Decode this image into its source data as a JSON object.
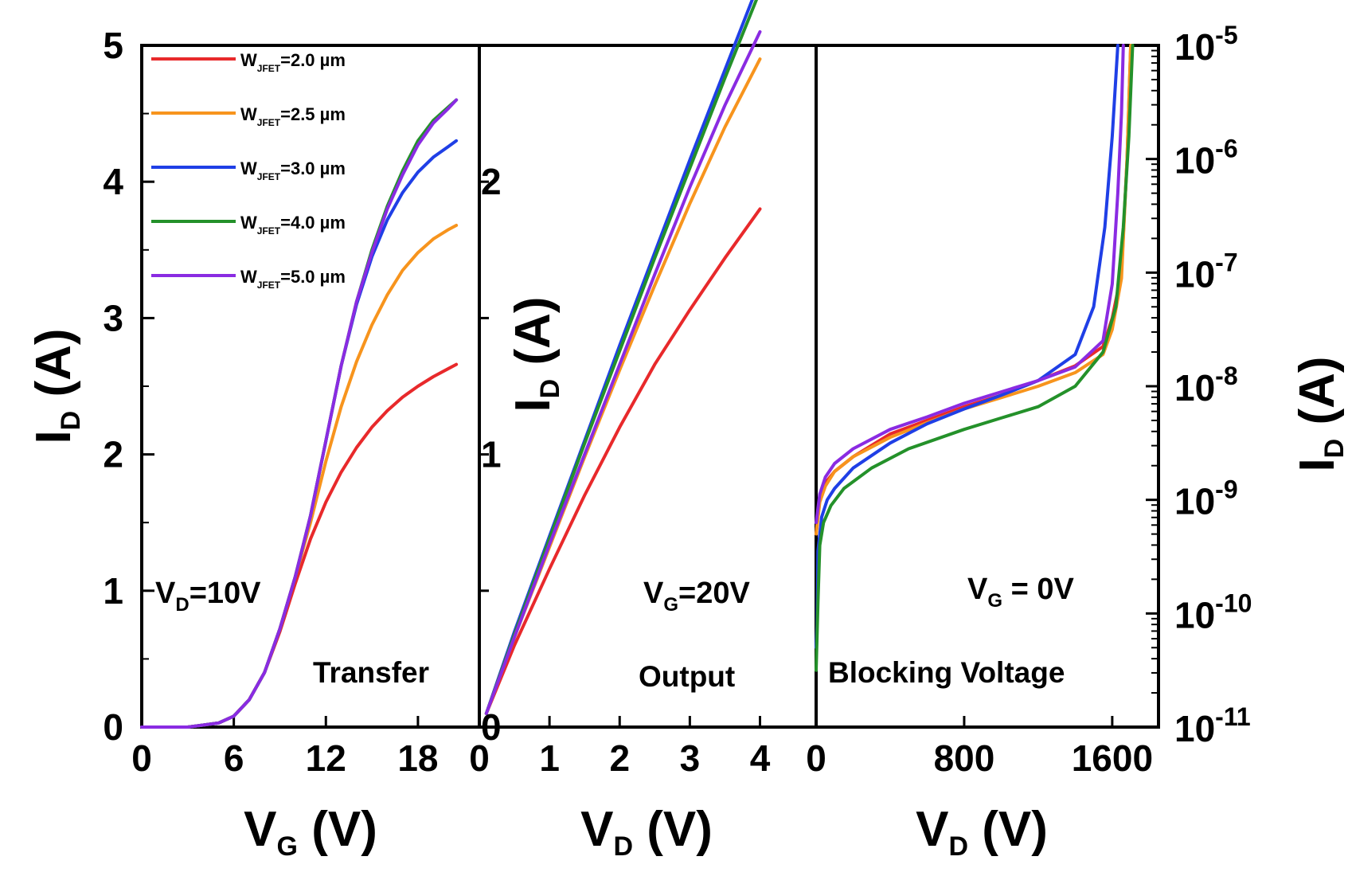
{
  "chart_data": {
    "type": "line",
    "series_names": [
      "W_JFET=2.0 µm",
      "W_JFET=2.5 µm",
      "W_JFET=3.0 µm",
      "W_JFET=4.0 µm",
      "W_JFET=5.0 µm"
    ],
    "legend": [
      {
        "main": "W",
        "sub": "JFET",
        "rest": "=2.0 µm",
        "color": "#e8292b"
      },
      {
        "main": "W",
        "sub": "JFET",
        "rest": "=2.5 µm",
        "color": "#f7941d"
      },
      {
        "main": "W",
        "sub": "JFET",
        "rest": "=3.0 µm",
        "color": "#1f3fe6"
      },
      {
        "main": "W",
        "sub": "JFET",
        "rest": "=4.0 µm",
        "color": "#24912a"
      },
      {
        "main": "W",
        "sub": "JFET",
        "rest": "=5.0 µm",
        "color": "#8a2be2"
      }
    ],
    "left_ylabel": {
      "main": "I",
      "sub": "D",
      "rest": " (A)"
    },
    "left_yticks": [
      "0",
      "1",
      "2",
      "3",
      "4",
      "5"
    ],
    "right_ylabel": {
      "main": "I",
      "sub": "D",
      "rest": " (A)"
    },
    "right_yticks": [
      {
        "base": "10",
        "exp": "-11"
      },
      {
        "base": "10",
        "exp": "-10"
      },
      {
        "base": "10",
        "exp": "-9"
      },
      {
        "base": "10",
        "exp": "-8"
      },
      {
        "base": "10",
        "exp": "-7"
      },
      {
        "base": "10",
        "exp": "-6"
      },
      {
        "base": "10",
        "exp": "-5"
      }
    ],
    "panels": [
      {
        "name": "Transfer",
        "xlabel": {
          "main": "V",
          "sub": "G",
          "rest": " (V)"
        },
        "xticks": [
          "0",
          "6",
          "12",
          "18"
        ],
        "xlim": [
          0,
          22
        ],
        "ylim": [
          0,
          5
        ],
        "yscale": "linear",
        "condition": {
          "main": "V",
          "sub": "D",
          "rest": "=10V"
        },
        "series": [
          {
            "name": "W_JFET=2.0 µm",
            "x": [
              0,
              3,
              5,
              6,
              7,
              8,
              9,
              10,
              11,
              12,
              13,
              14,
              15,
              16,
              17,
              18,
              19,
              20,
              20.5
            ],
            "y": [
              0,
              0,
              0.03,
              0.08,
              0.2,
              0.4,
              0.7,
              1.05,
              1.38,
              1.65,
              1.87,
              2.05,
              2.2,
              2.32,
              2.42,
              2.5,
              2.57,
              2.63,
              2.66
            ]
          },
          {
            "name": "W_JFET=2.5 µm",
            "x": [
              0,
              3,
              5,
              6,
              7,
              8,
              9,
              10,
              11,
              12,
              13,
              14,
              15,
              16,
              17,
              18,
              19,
              20,
              20.5
            ],
            "y": [
              0,
              0,
              0.03,
              0.08,
              0.2,
              0.4,
              0.72,
              1.1,
              1.5,
              1.95,
              2.35,
              2.68,
              2.95,
              3.17,
              3.35,
              3.48,
              3.58,
              3.65,
              3.68
            ]
          },
          {
            "name": "W_JFET=3.0 µm",
            "x": [
              0,
              3,
              5,
              6,
              7,
              8,
              9,
              10,
              11,
              12,
              13,
              14,
              15,
              16,
              17,
              18,
              19,
              20,
              20.5
            ],
            "y": [
              0,
              0,
              0.03,
              0.08,
              0.2,
              0.4,
              0.72,
              1.1,
              1.55,
              2.1,
              2.65,
              3.1,
              3.45,
              3.72,
              3.92,
              4.07,
              4.18,
              4.26,
              4.3
            ]
          },
          {
            "name": "W_JFET=4.0 µm",
            "x": [
              0,
              3,
              5,
              6,
              7,
              8,
              9,
              10,
              11,
              12,
              13,
              14,
              15,
              16,
              17,
              18,
              19,
              20,
              20.5
            ],
            "y": [
              0,
              0,
              0.03,
              0.08,
              0.2,
              0.4,
              0.72,
              1.1,
              1.55,
              2.1,
              2.65,
              3.12,
              3.5,
              3.82,
              4.08,
              4.3,
              4.45,
              4.55,
              4.6
            ]
          },
          {
            "name": "W_JFET=5.0 µm",
            "x": [
              0,
              3,
              5,
              6,
              7,
              8,
              9,
              10,
              11,
              12,
              13,
              14,
              15,
              16,
              17,
              18,
              19,
              20,
              20.5
            ],
            "y": [
              0,
              0,
              0.03,
              0.08,
              0.2,
              0.4,
              0.72,
              1.1,
              1.55,
              2.1,
              2.65,
              3.12,
              3.48,
              3.8,
              4.05,
              4.27,
              4.43,
              4.54,
              4.6
            ]
          }
        ]
      },
      {
        "name": "Output",
        "xlabel": {
          "main": "V",
          "sub": "D",
          "rest": " (V)"
        },
        "xticks": [
          "0",
          "1",
          "2",
          "3",
          "4"
        ],
        "yticks_inner": [
          "0",
          "1",
          "2"
        ],
        "xlim": [
          0,
          4.8
        ],
        "ylim": [
          0,
          2.5
        ],
        "yscale": "linear",
        "condition": {
          "main": "V",
          "sub": "G",
          "rest": "=20V"
        },
        "series": [
          {
            "name": "W_JFET=2.0 µm",
            "x": [
              0.1,
              0.5,
              1,
              1.5,
              2,
              2.5,
              3,
              3.5,
              4
            ],
            "y": [
              0.05,
              0.3,
              0.58,
              0.85,
              1.1,
              1.33,
              1.53,
              1.72,
              1.9
            ]
          },
          {
            "name": "W_JFET=2.5 µm",
            "x": [
              0.1,
              0.5,
              1,
              1.5,
              2,
              2.5,
              3,
              3.5,
              4
            ],
            "y": [
              0.05,
              0.33,
              0.66,
              0.99,
              1.31,
              1.62,
              1.92,
              2.2,
              2.45
            ]
          },
          {
            "name": "W_JFET=3.0 µm",
            "x": [
              0.1,
              0.5,
              1,
              1.5,
              2,
              2.5,
              3,
              3.5,
              4
            ],
            "y": [
              0.05,
              0.35,
              0.7,
              1.05,
              1.4,
              1.74,
              2.08,
              2.41,
              2.74
            ]
          },
          {
            "name": "W_JFET=4.0 µm",
            "x": [
              0.1,
              0.5,
              1,
              1.5,
              2,
              2.5,
              3,
              3.5,
              4
            ],
            "y": [
              0.05,
              0.34,
              0.69,
              1.04,
              1.38,
              1.72,
              2.05,
              2.38,
              2.7
            ]
          },
          {
            "name": "W_JFET=5.0 µm",
            "x": [
              0.1,
              0.5,
              1,
              1.5,
              2,
              2.5,
              3,
              3.5,
              4
            ],
            "y": [
              0.05,
              0.33,
              0.67,
              1.0,
              1.33,
              1.66,
              1.98,
              2.28,
              2.55
            ]
          }
        ]
      },
      {
        "name": "Blocking Voltage",
        "xlabel": {
          "main": "V",
          "sub": "D",
          "rest": " (V)"
        },
        "xticks": [
          "0",
          "800",
          "1600"
        ],
        "xlim": [
          0,
          1850
        ],
        "ylim": [
          -11,
          -5
        ],
        "yscale": "log10",
        "condition": {
          "main": "V",
          "sub": "G",
          "rest": " = 0V"
        },
        "series": [
          {
            "name": "W_JFET=2.0 µm",
            "x": [
              0,
              20,
              50,
              100,
              200,
              400,
              600,
              800,
              1000,
              1200,
              1400,
              1550,
              1600,
              1650,
              1680,
              1700
            ],
            "y": [
              -9.3,
              -9.0,
              -8.85,
              -8.75,
              -8.62,
              -8.42,
              -8.3,
              -8.18,
              -8.08,
              -7.95,
              -7.82,
              -7.65,
              -7.4,
              -7.0,
              -6.0,
              -5.0
            ]
          },
          {
            "name": "W_JFET=2.5 µm",
            "x": [
              0,
              20,
              50,
              100,
              200,
              400,
              600,
              800,
              1000,
              1200,
              1400,
              1550,
              1600,
              1650,
              1680,
              1700
            ],
            "y": [
              -9.3,
              -9.02,
              -8.88,
              -8.75,
              -8.62,
              -8.45,
              -8.32,
              -8.2,
              -8.1,
              -8.0,
              -7.88,
              -7.72,
              -7.5,
              -7.05,
              -6.0,
              -5.0
            ]
          },
          {
            "name": "W_JFET=3.0 µm",
            "x": [
              0,
              5,
              10,
              30,
              60,
              100,
              200,
              400,
              600,
              800,
              1000,
              1200,
              1400,
              1500,
              1560,
              1600,
              1630
            ],
            "y": [
              -10.3,
              -10.1,
              -9.45,
              -9.15,
              -9.0,
              -8.9,
              -8.72,
              -8.5,
              -8.33,
              -8.2,
              -8.08,
              -7.95,
              -7.72,
              -7.3,
              -6.6,
              -5.8,
              -5.0
            ]
          },
          {
            "name": "W_JFET=4.0 µm",
            "x": [
              0,
              10,
              20,
              40,
              80,
              150,
              300,
              500,
              800,
              1000,
              1200,
              1400,
              1550,
              1620,
              1660,
              1690,
              1710
            ],
            "y": [
              -10.5,
              -9.9,
              -9.4,
              -9.2,
              -9.05,
              -8.9,
              -8.72,
              -8.55,
              -8.38,
              -8.28,
              -8.18,
              -8.0,
              -7.7,
              -7.3,
              -6.6,
              -5.8,
              -5.0
            ]
          },
          {
            "name": "W_JFET=5.0 µm",
            "x": [
              0,
              20,
              50,
              100,
              200,
              400,
              600,
              800,
              1000,
              1200,
              1400,
              1550,
              1600,
              1630,
              1650,
              1660
            ],
            "y": [
              -9.2,
              -8.95,
              -8.8,
              -8.68,
              -8.55,
              -8.38,
              -8.27,
              -8.15,
              -8.05,
              -7.95,
              -7.83,
              -7.6,
              -7.1,
              -6.3,
              -5.6,
              -5.0
            ]
          }
        ]
      }
    ]
  }
}
